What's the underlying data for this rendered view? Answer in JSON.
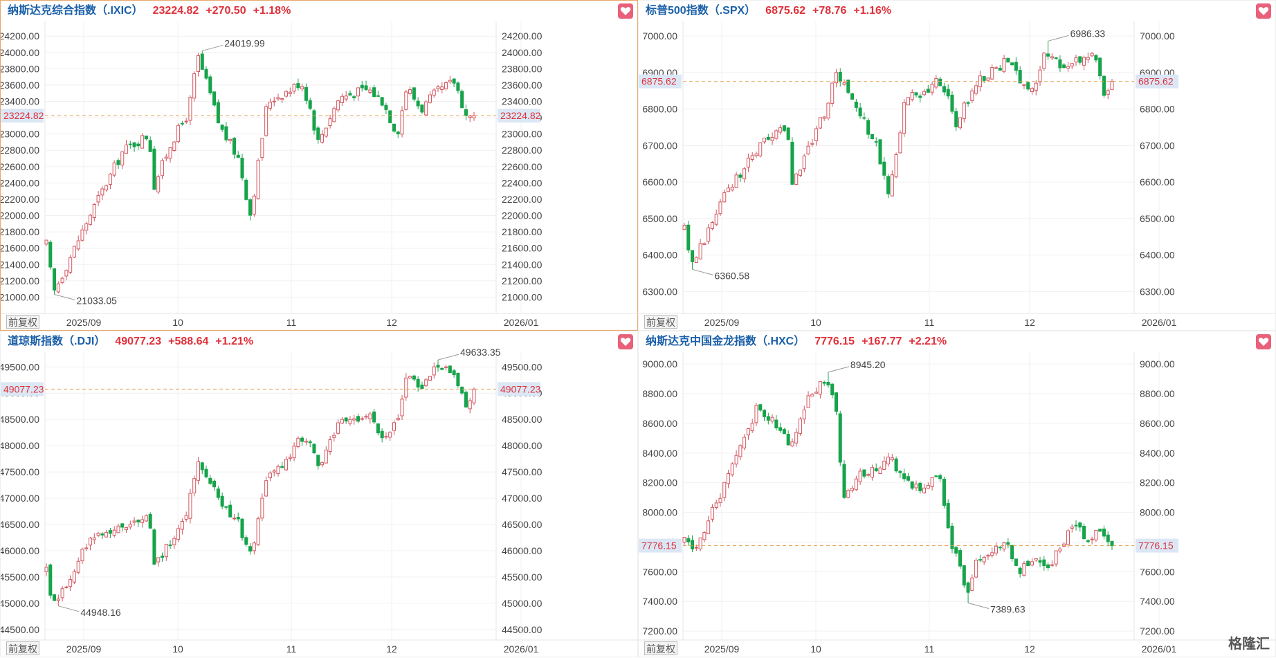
{
  "brand": "格隆汇",
  "adjust_label": "前复权",
  "colors": {
    "up": "#d2555e",
    "down": "#16a34a",
    "accent_blue": "#1a5fa8",
    "ref_line": "#e0a050"
  },
  "panels": [
    {
      "id": "ixic",
      "header": {
        "name": "纳斯达克综合指数（.IXIC）",
        "value": "23224.82",
        "change": "+270.50",
        "pct": "+1.18%"
      },
      "chart_data": {
        "type": "candlestick",
        "y_ticks": [
          "24200.00",
          "24000.00",
          "23800.00",
          "23600.00",
          "23400.00",
          "23200.00",
          "23000.00",
          "22800.00",
          "22600.00",
          "22400.00",
          "22200.00",
          "22000.00",
          "21800.00",
          "21600.00",
          "21400.00",
          "21200.00",
          "21000.00"
        ],
        "ylim": [
          20800,
          24380
        ],
        "x_labels": [
          "2025/09",
          "10",
          "11",
          "12",
          "2026/01"
        ],
        "current": "23224.82",
        "annotations": {
          "high": "24019.99",
          "low": "21033.05"
        },
        "start": 21650,
        "end": 23224.82,
        "low": 21033.05,
        "high": 24019.99,
        "n": 108,
        "anchors": [
          [
            0,
            21650
          ],
          [
            3,
            21050
          ],
          [
            18,
            22000
          ],
          [
            32,
            22800
          ],
          [
            43,
            23000
          ],
          [
            44,
            22300
          ],
          [
            52,
            22900
          ],
          [
            59,
            23250
          ],
          [
            63,
            23950
          ],
          [
            68,
            23500
          ],
          [
            72,
            23100
          ],
          [
            80,
            22700
          ],
          [
            85,
            22000
          ],
          [
            92,
            23400
          ],
          [
            102,
            23550
          ],
          [
            106,
            23650
          ],
          [
            110,
            23300
          ],
          [
            113,
            22900
          ],
          [
            122,
            23450
          ],
          [
            134,
            23550
          ],
          [
            140,
            23400
          ],
          [
            146,
            23000
          ],
          [
            150,
            23580
          ],
          [
            156,
            23300
          ],
          [
            162,
            23500
          ],
          [
            170,
            23650
          ],
          [
            175,
            23200
          ],
          [
            178,
            23224.82
          ]
        ]
      }
    },
    {
      "id": "spx",
      "header": {
        "name": "标普500指数（.SPX）",
        "value": "6875.62",
        "change": "+78.76",
        "pct": "+1.16%"
      },
      "chart_data": {
        "type": "candlestick",
        "y_ticks": [
          "7000.00",
          "6900.00",
          "6800.00",
          "6700.00",
          "6600.00",
          "6500.00",
          "6400.00",
          "6300.00"
        ],
        "ylim": [
          6240,
          7040
        ],
        "x_labels": [
          "2025/09",
          "10",
          "11",
          "12",
          "2026/01"
        ],
        "current": "6875.62",
        "annotations": {
          "high": "6986.33",
          "low": "6360.58"
        },
        "start": 6470,
        "end": 6875.62,
        "low": 6360.58,
        "high": 6986.33,
        "n": 108,
        "anchors": [
          [
            0,
            6470
          ],
          [
            3,
            6370
          ],
          [
            18,
            6580
          ],
          [
            32,
            6700
          ],
          [
            43,
            6760
          ],
          [
            44,
            6580
          ],
          [
            52,
            6700
          ],
          [
            59,
            6800
          ],
          [
            63,
            6890
          ],
          [
            68,
            6860
          ],
          [
            72,
            6800
          ],
          [
            80,
            6700
          ],
          [
            85,
            6560
          ],
          [
            92,
            6830
          ],
          [
            102,
            6850
          ],
          [
            106,
            6880
          ],
          [
            110,
            6830
          ],
          [
            113,
            6760
          ],
          [
            122,
            6880
          ],
          [
            134,
            6930
          ],
          [
            140,
            6880
          ],
          [
            146,
            6850
          ],
          [
            150,
            6960
          ],
          [
            156,
            6920
          ],
          [
            162,
            6930
          ],
          [
            170,
            6960
          ],
          [
            175,
            6830
          ],
          [
            178,
            6875.62
          ]
        ]
      }
    },
    {
      "id": "dji",
      "header": {
        "name": "道琼斯指数（.DJI）",
        "value": "49077.23",
        "change": "+588.64",
        "pct": "+1.21%"
      },
      "chart_data": {
        "type": "candlestick",
        "y_ticks": [
          "49500.00",
          "49000.00",
          "48500.00",
          "48000.00",
          "47500.00",
          "47000.00",
          "46500.00",
          "46000.00",
          "45500.00",
          "45000.00",
          "44500.00"
        ],
        "ylim": [
          44300,
          49780
        ],
        "x_labels": [
          "2025/09",
          "10",
          "11",
          "12",
          "2026/01"
        ],
        "current": "49077.23",
        "annotations": {
          "high": "49633.35",
          "low": "44948.16"
        },
        "start": 45600,
        "end": 49077.23,
        "low": 44948.16,
        "high": 49633.35,
        "n": 108,
        "anchors": [
          [
            0,
            45600
          ],
          [
            3,
            44950
          ],
          [
            18,
            46200
          ],
          [
            32,
            46500
          ],
          [
            43,
            46600
          ],
          [
            44,
            45600
          ],
          [
            52,
            46200
          ],
          [
            59,
            46800
          ],
          [
            63,
            47800
          ],
          [
            68,
            47300
          ],
          [
            72,
            47000
          ],
          [
            80,
            46500
          ],
          [
            85,
            45900
          ],
          [
            92,
            47400
          ],
          [
            102,
            47800
          ],
          [
            106,
            48200
          ],
          [
            110,
            48000
          ],
          [
            113,
            47600
          ],
          [
            122,
            48400
          ],
          [
            134,
            48600
          ],
          [
            140,
            48200
          ],
          [
            146,
            48400
          ],
          [
            150,
            49300
          ],
          [
            156,
            49100
          ],
          [
            162,
            49500
          ],
          [
            170,
            49400
          ],
          [
            175,
            48700
          ],
          [
            178,
            49077.23
          ]
        ]
      }
    },
    {
      "id": "hxc",
      "header": {
        "name": "纳斯达克中国金龙指数（.HXC）",
        "value": "7776.15",
        "change": "+167.77",
        "pct": "+2.21%"
      },
      "chart_data": {
        "type": "candlestick",
        "y_ticks": [
          "9000.00",
          "8800.00",
          "8600.00",
          "8400.00",
          "8200.00",
          "8000.00",
          "7800.00",
          "7600.00",
          "7400.00",
          "7200.00"
        ],
        "ylim": [
          7140,
          9080
        ],
        "x_labels": [
          "2025/09",
          "10",
          "11",
          "12",
          "2026/01"
        ],
        "current": "7776.15",
        "annotations": {
          "high": "8945.20",
          "low": "7389.63"
        },
        "start": 7800,
        "end": 7776.15,
        "low": 7389.63,
        "high": 8945.2,
        "n": 108,
        "anchors": [
          [
            0,
            7800
          ],
          [
            5,
            7780
          ],
          [
            10,
            7950
          ],
          [
            20,
            8300
          ],
          [
            30,
            8700
          ],
          [
            38,
            8600
          ],
          [
            44,
            8450
          ],
          [
            52,
            8800
          ],
          [
            59,
            8900
          ],
          [
            63,
            8750
          ],
          [
            66,
            8050
          ],
          [
            72,
            8250
          ],
          [
            80,
            8300
          ],
          [
            85,
            8400
          ],
          [
            92,
            8200
          ],
          [
            100,
            8150
          ],
          [
            106,
            8250
          ],
          [
            110,
            7850
          ],
          [
            113,
            7700
          ],
          [
            118,
            7450
          ],
          [
            122,
            7700
          ],
          [
            134,
            7780
          ],
          [
            140,
            7600
          ],
          [
            146,
            7700
          ],
          [
            150,
            7600
          ],
          [
            156,
            7750
          ],
          [
            162,
            7950
          ],
          [
            168,
            7800
          ],
          [
            172,
            7900
          ],
          [
            178,
            7776.15
          ]
        ]
      }
    }
  ]
}
